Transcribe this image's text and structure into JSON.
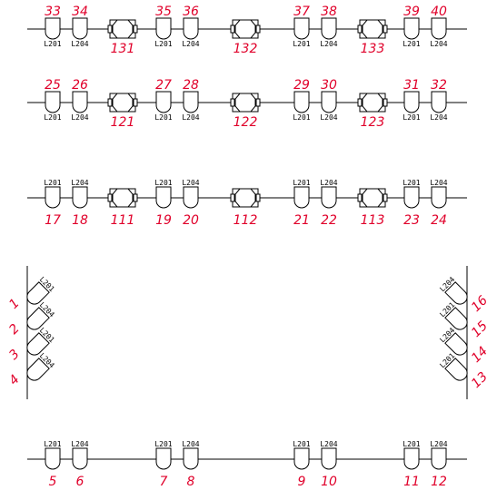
{
  "colors": {
    "number": "#e0002a",
    "line": "#000000",
    "background": "#ffffff"
  },
  "rows": [
    {
      "name": "row-top-1",
      "numbers_above": true,
      "items": [
        {
          "type": "L",
          "num": "33",
          "label": "L201"
        },
        {
          "type": "L",
          "num": "34",
          "label": "L204"
        },
        {
          "type": "B",
          "num": "131"
        },
        {
          "type": "L",
          "num": "35",
          "label": "L201"
        },
        {
          "type": "L",
          "num": "36",
          "label": "L204"
        },
        {
          "type": "B",
          "num": "132"
        },
        {
          "type": "L",
          "num": "37",
          "label": "L201"
        },
        {
          "type": "L",
          "num": "38",
          "label": "L204"
        },
        {
          "type": "B",
          "num": "133"
        },
        {
          "type": "L",
          "num": "39",
          "label": "L201"
        },
        {
          "type": "L",
          "num": "40",
          "label": "L204"
        }
      ]
    },
    {
      "name": "row-top-2",
      "numbers_above": true,
      "items": [
        {
          "type": "L",
          "num": "25",
          "label": "L201"
        },
        {
          "type": "L",
          "num": "26",
          "label": "L204"
        },
        {
          "type": "B",
          "num": "121"
        },
        {
          "type": "L",
          "num": "27",
          "label": "L201"
        },
        {
          "type": "L",
          "num": "28",
          "label": "L204"
        },
        {
          "type": "B",
          "num": "122"
        },
        {
          "type": "L",
          "num": "29",
          "label": "L201"
        },
        {
          "type": "L",
          "num": "30",
          "label": "L204"
        },
        {
          "type": "B",
          "num": "123"
        },
        {
          "type": "L",
          "num": "31",
          "label": "L201"
        },
        {
          "type": "L",
          "num": "32",
          "label": "L204"
        }
      ]
    },
    {
      "name": "row-middle",
      "numbers_above": false,
      "items": [
        {
          "type": "L",
          "num": "17",
          "label": "L201"
        },
        {
          "type": "L",
          "num": "18",
          "label": "L204"
        },
        {
          "type": "B",
          "num": "111"
        },
        {
          "type": "L",
          "num": "19",
          "label": "L201"
        },
        {
          "type": "L",
          "num": "20",
          "label": "L204"
        },
        {
          "type": "B",
          "num": "112"
        },
        {
          "type": "L",
          "num": "21",
          "label": "L201"
        },
        {
          "type": "L",
          "num": "22",
          "label": "L204"
        },
        {
          "type": "B",
          "num": "113"
        },
        {
          "type": "L",
          "num": "23",
          "label": "L201"
        },
        {
          "type": "L",
          "num": "24",
          "label": "L204"
        }
      ]
    },
    {
      "name": "row-bottom",
      "numbers_above": false,
      "items": [
        {
          "type": "L",
          "num": "5",
          "label": "L201"
        },
        {
          "type": "L",
          "num": "6",
          "label": "L204"
        },
        {
          "type": "L",
          "num": "7",
          "label": "L201"
        },
        {
          "type": "L",
          "num": "8",
          "label": "L204"
        },
        {
          "type": "L",
          "num": "9",
          "label": "L201"
        },
        {
          "type": "L",
          "num": "10",
          "label": "L204"
        },
        {
          "type": "L",
          "num": "11",
          "label": "L201"
        },
        {
          "type": "L",
          "num": "12",
          "label": "L204"
        }
      ]
    }
  ],
  "left_chain": [
    {
      "num": "1",
      "label": "L201"
    },
    {
      "num": "2",
      "label": "L204"
    },
    {
      "num": "3",
      "label": "L201"
    },
    {
      "num": "4",
      "label": "L204"
    }
  ],
  "right_chain": [
    {
      "num": "16",
      "label": "L204"
    },
    {
      "num": "15",
      "label": "L201"
    },
    {
      "num": "14",
      "label": "L204"
    },
    {
      "num": "13",
      "label": "L201"
    }
  ]
}
